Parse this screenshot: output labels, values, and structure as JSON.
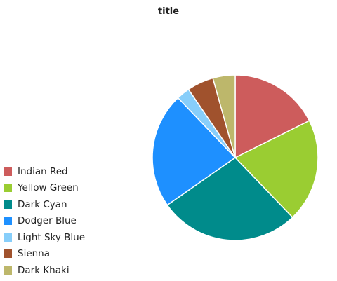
{
  "chart_data": {
    "type": "pie",
    "title": "title",
    "start_angle_deg": 90,
    "direction": "clockwise",
    "legend_position": "left",
    "series": [
      {
        "name": "Indian Red",
        "value": 17.0,
        "color": "#cd5c5c"
      },
      {
        "name": "Yellow Green",
        "value": 19.5,
        "color": "#9acd32"
      },
      {
        "name": "Dark Cyan",
        "value": 26.5,
        "color": "#008b8b"
      },
      {
        "name": "Dodger Blue",
        "value": 21.8,
        "color": "#1e90ff"
      },
      {
        "name": "Light Sky Blue",
        "value": 2.5,
        "color": "#87cefa"
      },
      {
        "name": "Sienna",
        "value": 5.0,
        "color": "#a0522d"
      },
      {
        "name": "Dark Khaki",
        "value": 4.2,
        "color": "#bdb76b"
      }
    ]
  }
}
